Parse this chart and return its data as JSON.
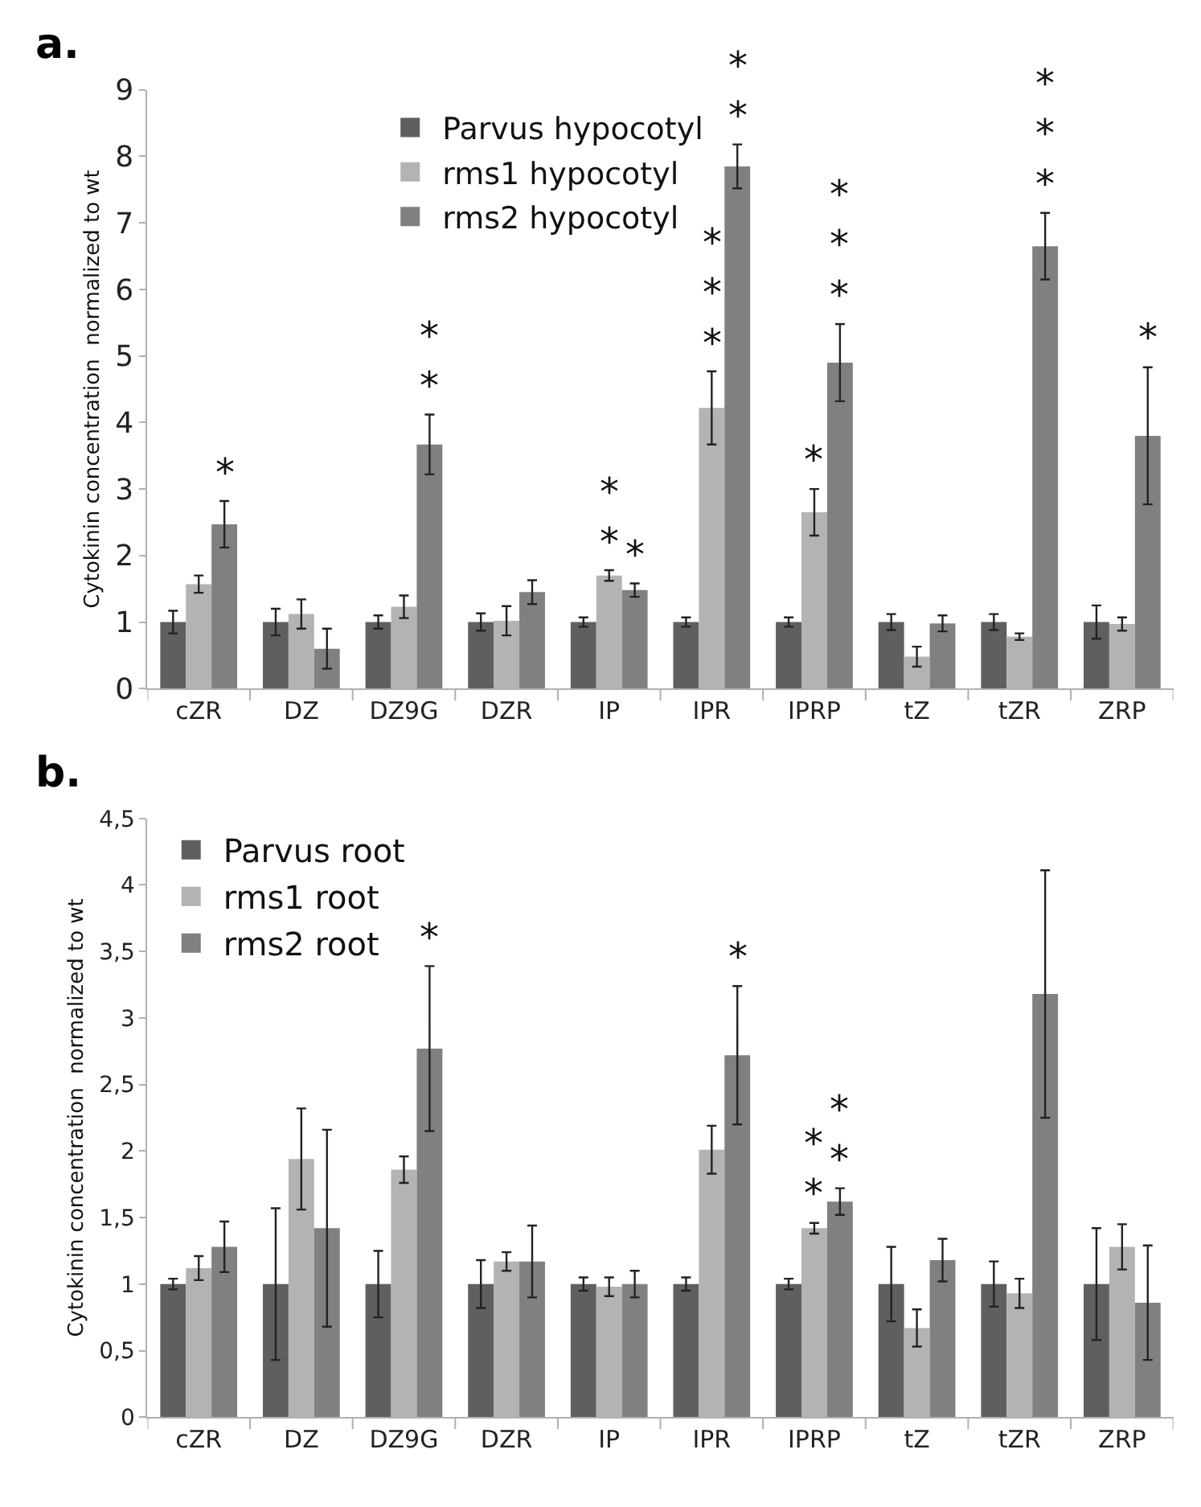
{
  "chart_data": [
    {
      "type": "bar",
      "title": "a.",
      "ylabel": "Cytokinin concentration  normalized to wt",
      "categories": [
        "cZR",
        "DZ",
        "DZ9G",
        "DZR",
        "IP",
        "IPR",
        "IPRP",
        "tZ",
        "tZR",
        "ZRP"
      ],
      "series": [
        {
          "name": "Parvus hypocotyl",
          "color": "#5f5f5f",
          "values": [
            1,
            1,
            1,
            1,
            1,
            1,
            1,
            1,
            1,
            1
          ],
          "errors": [
            0.17,
            0.2,
            0.1,
            0.13,
            0.07,
            0.07,
            0.07,
            0.12,
            0.12,
            0.25
          ]
        },
        {
          "name": "rms1 hypocotyl",
          "color": "#b3b3b3",
          "values": [
            1.57,
            1.12,
            1.23,
            1.02,
            1.7,
            4.22,
            2.65,
            0.48,
            0.78,
            0.97
          ],
          "errors": [
            0.13,
            0.22,
            0.17,
            0.22,
            0.08,
            0.55,
            0.35,
            0.15,
            0.05,
            0.1
          ],
          "value_labels": [
            null,
            null,
            null,
            null,
            "*\n*",
            "*\n*\n*",
            "*",
            null,
            null,
            null
          ]
        },
        {
          "name": "rms2 hypocotyl",
          "color": "#808080",
          "values": [
            2.47,
            0.6,
            3.67,
            1.45,
            1.48,
            7.85,
            4.9,
            0.98,
            6.65,
            3.8
          ],
          "errors": [
            0.35,
            0.3,
            0.45,
            0.18,
            0.1,
            0.33,
            0.58,
            0.12,
            0.5,
            1.03
          ],
          "value_labels": [
            "*",
            null,
            "*\n*",
            null,
            "*",
            "*\n*",
            "*\n*\n*",
            null,
            "*\n*\n*",
            "*"
          ]
        }
      ],
      "ylim": [
        0,
        9
      ],
      "yticks": [
        0,
        1,
        2,
        3,
        4,
        5,
        6,
        7,
        8,
        9
      ],
      "legend": "top left"
    },
    {
      "type": "bar",
      "title": "b.",
      "ylabel": "Cytokinin concentration  normalized to wt",
      "categories": [
        "cZR",
        "DZ",
        "DZ9G",
        "DZR",
        "IP",
        "IPR",
        "IPRP",
        "tZ",
        "tZR",
        "ZRP"
      ],
      "series": [
        {
          "name": "Parvus root",
          "color": "#5f5f5f",
          "values": [
            1,
            1,
            1,
            1,
            1,
            1,
            1,
            1,
            1,
            1
          ],
          "errors": [
            0.04,
            0.57,
            0.25,
            0.18,
            0.05,
            0.05,
            0.04,
            0.28,
            0.17,
            0.42
          ]
        },
        {
          "name": "rms1 root",
          "color": "#b3b3b3",
          "values": [
            1.12,
            1.94,
            1.86,
            1.17,
            0.98,
            2.01,
            1.42,
            0.67,
            0.93,
            1.28
          ],
          "errors": [
            0.09,
            0.38,
            0.1,
            0.07,
            0.07,
            0.18,
            0.04,
            0.14,
            0.11,
            0.17
          ],
          "value_labels": [
            null,
            null,
            null,
            null,
            null,
            null,
            "*\n*",
            null,
            null,
            null
          ]
        },
        {
          "name": "rms2 root",
          "color": "#808080",
          "values": [
            1.28,
            1.42,
            2.77,
            1.17,
            1.0,
            2.72,
            1.62,
            1.18,
            3.18,
            0.86
          ],
          "errors": [
            0.19,
            0.74,
            0.62,
            0.27,
            0.1,
            0.52,
            0.1,
            0.16,
            0.93,
            0.43
          ],
          "value_labels": [
            null,
            null,
            "*",
            null,
            null,
            "*",
            "*\n*",
            null,
            null,
            null
          ]
        }
      ],
      "ylim": [
        0,
        4.5
      ],
      "yticks": [
        0,
        {
          "value": 0.5,
          "label": "0,5"
        },
        1,
        {
          "value": 1.5,
          "label": "1,5"
        },
        2,
        {
          "value": 2.5,
          "label": "2,5"
        },
        3,
        {
          "value": 3.5,
          "label": "3,5"
        },
        4,
        {
          "value": 4.5,
          "label": "4,5"
        }
      ],
      "legend": "top left"
    }
  ]
}
